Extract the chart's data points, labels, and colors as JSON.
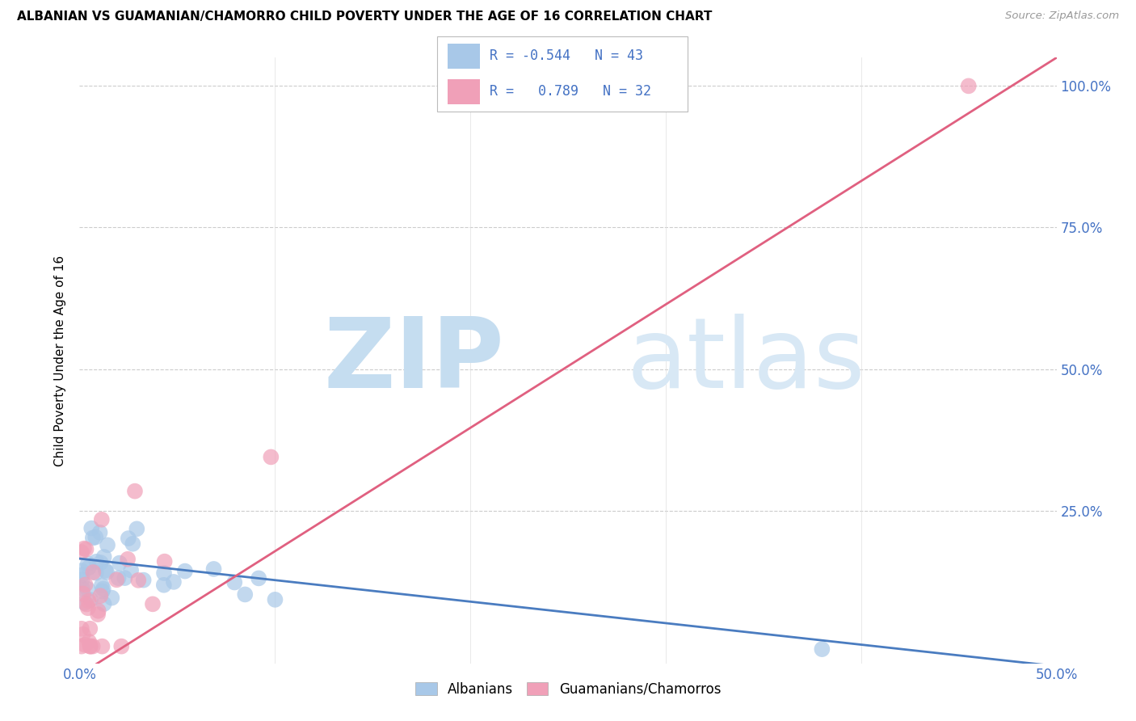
{
  "title": "ALBANIAN VS GUAMANIAN/CHAMORRO CHILD POVERTY UNDER THE AGE OF 16 CORRELATION CHART",
  "source": "Source: ZipAtlas.com",
  "ylabel": "Child Poverty Under the Age of 16",
  "xlim": [
    0.0,
    0.5
  ],
  "ylim": [
    -0.02,
    1.05
  ],
  "albanian_color": "#a8c8e8",
  "guamanian_color": "#f0a0b8",
  "albanian_line_color": "#4a7cc0",
  "guamanian_line_color": "#e06080",
  "R_albanian": -0.544,
  "N_albanian": 43,
  "R_guamanian": 0.789,
  "N_guamanian": 32,
  "legend_label_1": "Albanians",
  "legend_label_2": "Guamanians/Chamorros",
  "watermark_zip": "ZIP",
  "watermark_atlas": "atlas",
  "ytick_positions": [
    0.0,
    0.25,
    0.5,
    0.75,
    1.0
  ],
  "ytick_labels": [
    "",
    "25.0%",
    "50.0%",
    "75.0%",
    "100.0%"
  ],
  "xtick_positions": [
    0.0,
    0.1,
    0.2,
    0.3,
    0.4,
    0.5
  ],
  "xtick_labels": [
    "0.0%",
    "",
    "",
    "",
    "",
    "50.0%"
  ]
}
